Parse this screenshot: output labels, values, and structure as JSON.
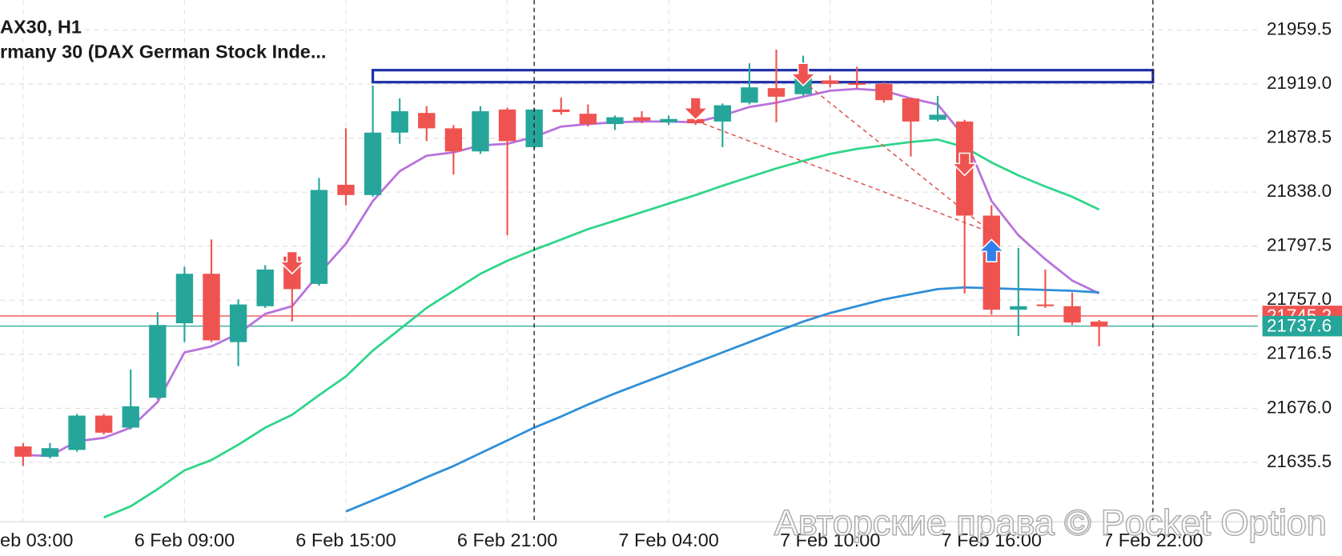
{
  "chart_data": {
    "type": "candlestick",
    "title": "AX30, H1",
    "subtitle": "rmany 30 (DAX German Stock Inde...",
    "watermark": "Авторские права © Pocket Option",
    "categories": [
      "eb 03:00",
      null,
      null,
      null,
      null,
      null,
      "6 Feb 09:00",
      null,
      null,
      null,
      null,
      null,
      "6 Feb 15:00",
      null,
      null,
      null,
      null,
      null,
      "6 Feb 21:00",
      null,
      null,
      null,
      null,
      null,
      "7 Feb 04:00",
      null,
      null,
      null,
      null,
      null,
      "7 Feb 10:00",
      null,
      null,
      null,
      null,
      null,
      "7 Feb 16:00",
      null,
      null,
      null,
      null,
      null,
      "7 Feb 22:00"
    ],
    "open": [
      21647.4,
      21639.7,
      21644.8,
      21670.5,
      21661.5,
      21683.9,
      21739.7,
      21776.8,
      21725.6,
      21752.5,
      21789.7,
      21769.2,
      21843.5,
      21835.8,
      21882.6,
      21897.3,
      21885.8,
      21868.5,
      21899.9,
      21871.7,
      21899.9,
      21896.7,
      21889.0,
      21894.1,
      21890.3,
      21892.8,
      21890.9,
      21905.0,
      21915.9,
      21911.4,
      21921.7,
      21919.7,
      21919.1,
      21908.2,
      21892.2,
      21890.9,
      21820.4,
      21749.9,
      21753.8,
      21752.5,
      21741.0,
      null,
      null
    ],
    "high": [
      21650.0,
      21650.0,
      21671.8,
      21671.8,
      21705.1,
      21748.0,
      21782.0,
      21802.5,
      21757.6,
      21783.3,
      21791.0,
      21848.6,
      21885.8,
      21917.8,
      21908.2,
      21902.4,
      21888.3,
      21902.4,
      21901.2,
      21901.2,
      21908.8,
      21903.7,
      21895.4,
      21898.6,
      21895.4,
      21895.4,
      21904.4,
      21934.5,
      21944.7,
      21940.2,
      21925.5,
      21931.9,
      21920.4,
      21908.8,
      21910.1,
      21892.2,
      21828.1,
      21796.1,
      21780.0,
      21762.8,
      21742.2,
      null,
      null
    ],
    "low": [
      21632.7,
      21638.4,
      21643.5,
      21656.4,
      21660.2,
      21682.6,
      21725.6,
      21725.6,
      21707.6,
      21751.2,
      21741.0,
      21767.9,
      21828.1,
      21834.5,
      21874.2,
      21876.2,
      21851.2,
      21866.6,
      21805.7,
      21870.4,
      21896.0,
      21887.1,
      21884.5,
      21889.6,
      21888.3,
      21888.3,
      21871.7,
      21903.7,
      21890.3,
      21910.1,
      21916.5,
      21915.9,
      21905.0,
      21864.6,
      21890.9,
      21762.1,
      21746.1,
      21730.1,
      21751.2,
      21738.4,
      21722.4,
      null,
      null
    ],
    "close": [
      21639.7,
      21646.1,
      21670.5,
      21657.7,
      21677.5,
      21738.4,
      21776.8,
      21726.9,
      21753.8,
      21780.0,
      21765.3,
      21839.6,
      21835.8,
      21882.6,
      21898.6,
      21885.8,
      21868.5,
      21898.6,
      21876.2,
      21899.9,
      21898.0,
      21889.0,
      21894.1,
      21891.5,
      21892.8,
      21889.6,
      21903.1,
      21916.5,
      21909.5,
      21924.2,
      21919.1,
      21918.5,
      21906.9,
      21890.9,
      21896.0,
      21820.4,
      21749.9,
      21752.5,
      21753.1,
      21740.3,
      21737.1,
      null,
      null
    ],
    "up_color": "#26a69a",
    "down_color": "#ef5350",
    "series": [
      {
        "color": "#b872dc",
        "values": [
          21641.0,
          21640.3,
          21651.3,
          21653.8,
          21661.5,
          21680.7,
          21717.9,
          21722.4,
          21732.0,
          21746.7,
          21752.5,
          21776.8,
          21799.3,
          21831.3,
          21853.7,
          21865.3,
          21867.8,
          21873.0,
          21874.2,
          21879.4,
          21887.1,
          21889.0,
          21890.3,
          21890.9,
          21890.9,
          21890.3,
          21895.4,
          21901.8,
          21905.0,
          21909.5,
          21914.0,
          21915.3,
          21914.0,
          21908.2,
          21903.7,
          21879.4,
          21831.3,
          21805.7,
          21787.7,
          21771.7,
          21762.1,
          null,
          null
        ]
      },
      {
        "color": "#2fd58a",
        "values": [
          null,
          null,
          null,
          21594.2,
          21602.6,
          21615.4,
          21629.5,
          21637.2,
          21648.7,
          21661.5,
          21671.1,
          21685.8,
          21699.9,
          21719.2,
          21735.2,
          21751.2,
          21764.0,
          21776.8,
          21786.5,
          21794.8,
          21802.5,
          21810.2,
          21816.6,
          21823.0,
          21829.4,
          21835.8,
          21842.8,
          21849.3,
          21855.7,
          21861.4,
          21866.6,
          21870.4,
          21873.0,
          21875.5,
          21877.4,
          21871.7,
          21860.2,
          21850.5,
          21842.2,
          21834.5,
          21824.9,
          null,
          null
        ]
      },
      {
        "color": "#2f8fd8",
        "values": [
          null,
          null,
          null,
          null,
          null,
          null,
          null,
          null,
          null,
          null,
          null,
          null,
          21598.7,
          21607.0,
          21615.4,
          21624.3,
          21632.7,
          21642.3,
          21651.9,
          21661.5,
          21669.8,
          21678.8,
          21687.1,
          21694.8,
          21702.5,
          21710.2,
          21717.9,
          21725.6,
          21733.3,
          21741.0,
          21747.4,
          21752.5,
          21757.6,
          21761.5,
          21765.3,
          21766.6,
          21766.0,
          21765.3,
          21764.7,
          21764.0,
          21762.8,
          null,
          null
        ]
      }
    ],
    "ylim": [
      21591.0,
      21981.9
    ],
    "yticks": [
      {
        "value": 21635.5,
        "label": "21635.5"
      },
      {
        "value": 21676.0,
        "label": "21676.0"
      },
      {
        "value": 21716.5,
        "label": "21716.5"
      },
      {
        "value": 21757.0,
        "label": "21757.0"
      },
      {
        "value": 21797.5,
        "label": "21797.5"
      },
      {
        "value": 21838.0,
        "label": "21838.0"
      },
      {
        "value": 21878.5,
        "label": "21878.5"
      },
      {
        "value": 21919.0,
        "label": "21919.0"
      },
      {
        "value": 21959.5,
        "label": "21959.5"
      }
    ],
    "grid": true,
    "price_lines": [
      {
        "value": 21745.2,
        "label": "21745.2",
        "color": "#ef5350"
      },
      {
        "value": 21737.6,
        "label": "21737.6",
        "color": "#26a69a"
      }
    ],
    "zone": {
      "start": 13,
      "end": 42,
      "low": 21920.4,
      "high": 21929.4,
      "color": "#1f2fa8"
    },
    "vlines": [
      19,
      42
    ],
    "trend_lines": [
      {
        "from": [
          25,
          21891.5
        ],
        "to": [
          36,
          21807.6
        ],
        "color": "#d9534f"
      },
      {
        "from": [
          29,
          21921.0
        ],
        "to": [
          36,
          21807.6
        ],
        "color": "#d9534f"
      }
    ],
    "signals": [
      {
        "index": 10,
        "price": 21776.8,
        "direction": "down",
        "color": "#ef5350"
      },
      {
        "index": 25,
        "price": 21892.2,
        "direction": "down",
        "color": "#ef5350"
      },
      {
        "index": 29,
        "price": 21917.8,
        "direction": "down",
        "color": "#ef5350"
      },
      {
        "index": 35,
        "price": 21850.5,
        "direction": "down",
        "color": "#ef5350"
      },
      {
        "index": 36,
        "price": 21802.5,
        "direction": "up",
        "color": "#2f80ed"
      }
    ]
  }
}
